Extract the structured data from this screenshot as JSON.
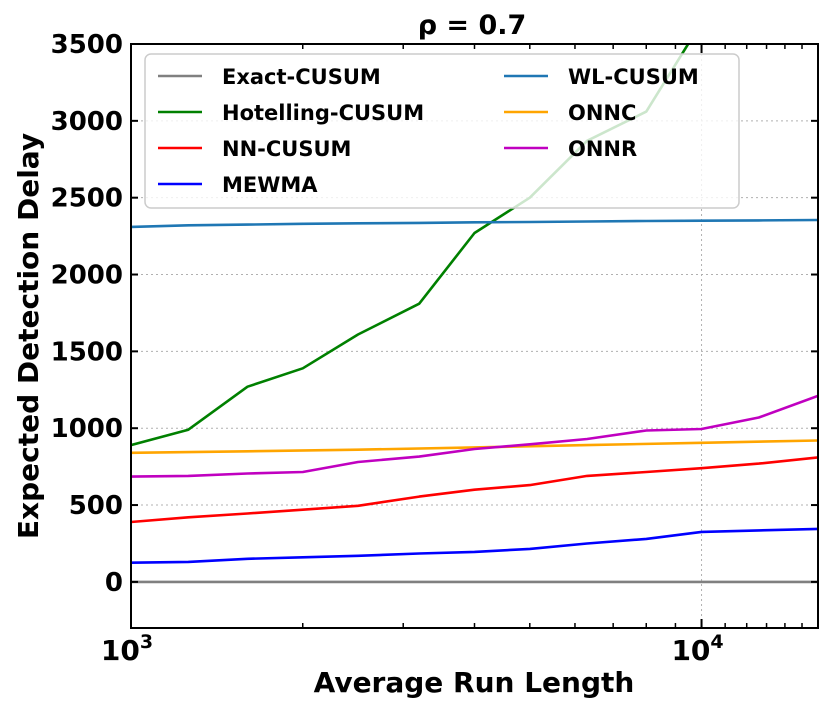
{
  "chart_data": {
    "type": "line",
    "title": "ρ = 0.7",
    "xlabel": "Average Run Length",
    "ylabel": "Expected Detection Delay",
    "xscale": "log",
    "xlim": [
      1000,
      16000
    ],
    "ylim": [
      -300,
      3500
    ],
    "xticks": [
      {
        "value": 1000,
        "base": "10",
        "exp": "3"
      },
      {
        "value": 10000,
        "base": "10",
        "exp": "4"
      }
    ],
    "yticks": [
      0,
      500,
      1000,
      1500,
      2000,
      2500,
      3000,
      3500
    ],
    "grid": true,
    "legend_position": "top",
    "series": [
      {
        "name": "Exact-CUSUM",
        "color": "#808080",
        "x": [
          1000,
          16000
        ],
        "y": [
          0,
          0
        ]
      },
      {
        "name": "Hotelling-CUSUM",
        "color": "#008000",
        "x": [
          1000,
          1260,
          1600,
          2000,
          2500,
          3200,
          4000,
          5000,
          6300,
          8000,
          10000
        ],
        "y": [
          890,
          990,
          1270,
          1390,
          1610,
          1810,
          2270,
          2500,
          2870,
          3060,
          3640
        ]
      },
      {
        "name": "NN-CUSUM",
        "color": "#ff0000",
        "x": [
          1000,
          1260,
          1600,
          2000,
          2500,
          3200,
          4000,
          5000,
          6300,
          8000,
          10000,
          12600,
          16000
        ],
        "y": [
          390,
          420,
          445,
          470,
          495,
          555,
          600,
          630,
          690,
          715,
          740,
          770,
          810
        ]
      },
      {
        "name": "MEWMA",
        "color": "#0000ff",
        "x": [
          1000,
          1260,
          1600,
          2000,
          2500,
          3200,
          4000,
          5000,
          6300,
          8000,
          10000,
          12600,
          16000
        ],
        "y": [
          125,
          130,
          150,
          160,
          170,
          185,
          195,
          215,
          250,
          280,
          325,
          335,
          345
        ]
      },
      {
        "name": "WL-CUSUM",
        "color": "#1f77b4",
        "x": [
          1000,
          1260,
          1600,
          2000,
          2500,
          3200,
          4000,
          5000,
          6300,
          8000,
          10000,
          12600,
          16000
        ],
        "y": [
          2310,
          2320,
          2325,
          2330,
          2333,
          2336,
          2340,
          2342,
          2345,
          2348,
          2350,
          2352,
          2355
        ]
      },
      {
        "name": "ONNC",
        "color": "#ffa500",
        "x": [
          1000,
          1600,
          2500,
          4000,
          6300,
          10000,
          16000
        ],
        "y": [
          840,
          850,
          860,
          875,
          890,
          905,
          920
        ]
      },
      {
        "name": "ONNR",
        "color": "#c000c0",
        "x": [
          1000,
          1260,
          1600,
          2000,
          2500,
          3200,
          4000,
          5000,
          6300,
          8000,
          10000,
          12600,
          16000
        ],
        "y": [
          685,
          690,
          705,
          715,
          780,
          815,
          865,
          895,
          930,
          985,
          995,
          1070,
          1210
        ]
      }
    ]
  }
}
